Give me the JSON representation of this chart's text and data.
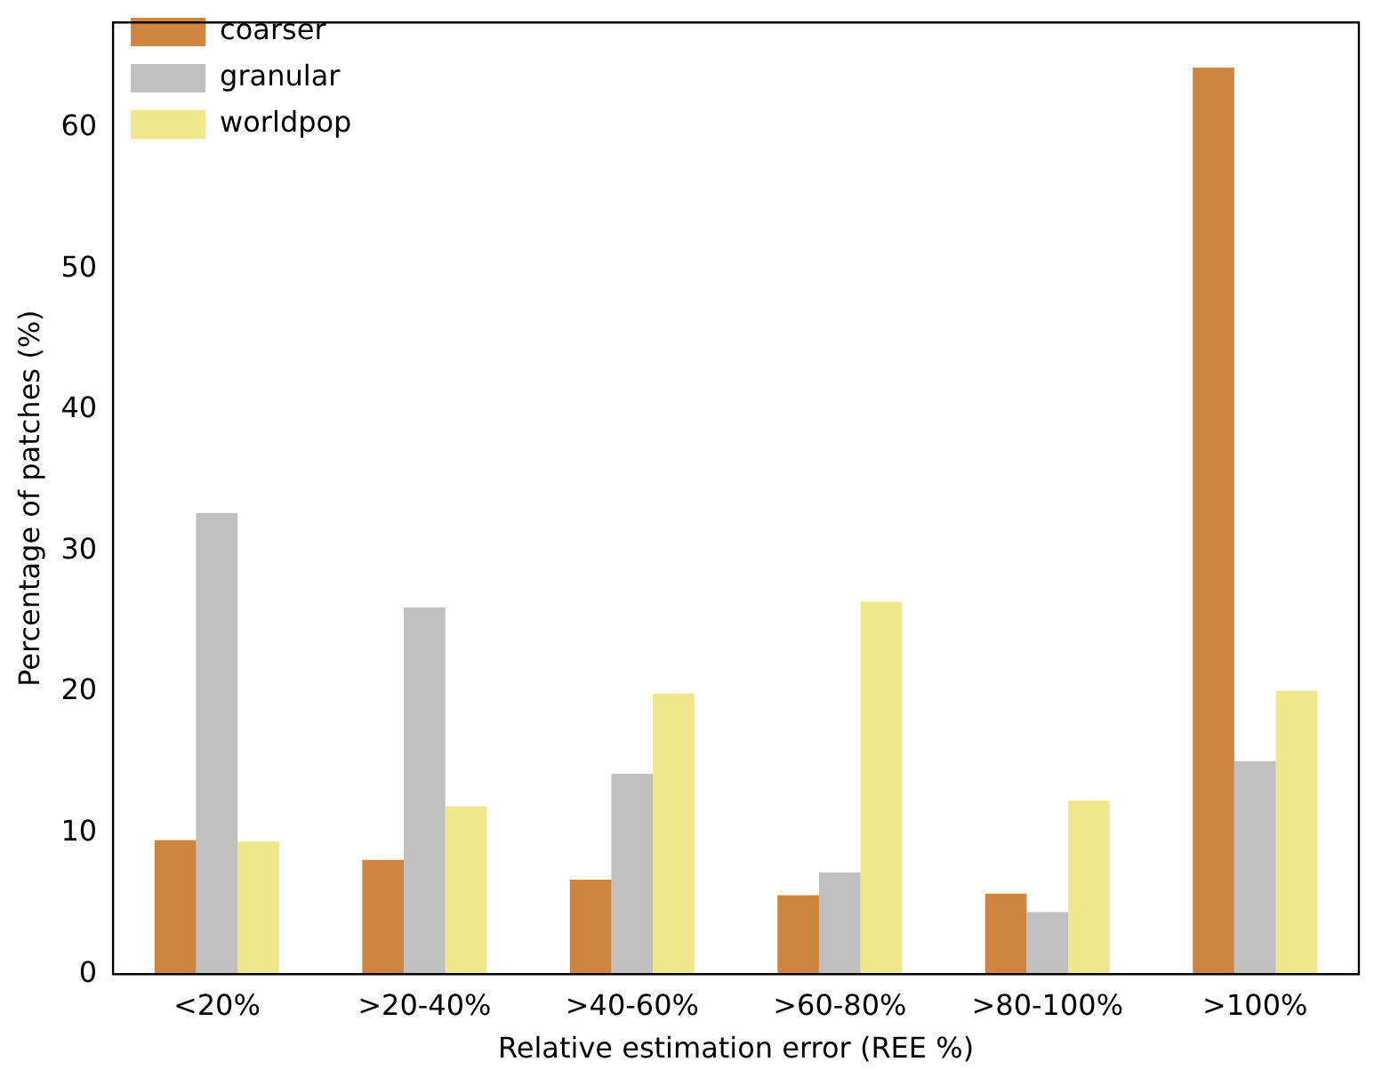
{
  "chart_data": {
    "type": "bar",
    "xlabel": "Relative estimation error (REE %)",
    "ylabel": "Percentage of patches (%)",
    "categories": [
      "<20%",
      ">20-40%",
      ">40-60%",
      ">60-80%",
      ">80-100%",
      ">100%"
    ],
    "series": [
      {
        "name": "coarser",
        "color": "#cd853f",
        "values": [
          9.5,
          8.1,
          6.7,
          5.6,
          5.7,
          64.3
        ]
      },
      {
        "name": "granular",
        "color": "#c0c0c0",
        "values": [
          32.7,
          26.0,
          14.2,
          7.2,
          4.4,
          15.1
        ]
      },
      {
        "name": "worldpop",
        "color": "#f0e68c",
        "values": [
          9.4,
          11.9,
          19.9,
          26.4,
          12.3,
          20.1
        ]
      }
    ],
    "ylim": [
      0,
      67.5
    ],
    "yticks": [
      0,
      10,
      20,
      30,
      40,
      50,
      60
    ],
    "grid": false,
    "legend": "top left"
  }
}
